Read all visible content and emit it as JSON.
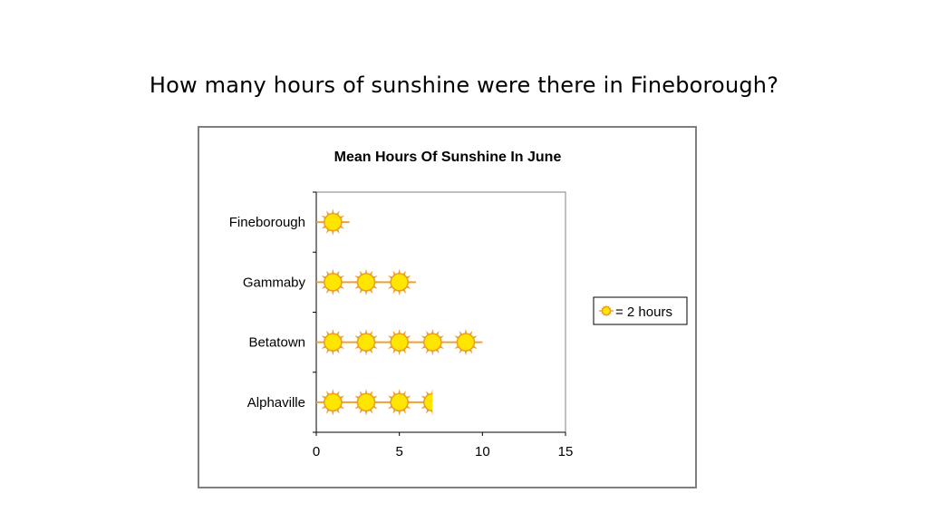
{
  "question": "How many hours of sunshine were there in Fineborough?",
  "chart_data": {
    "type": "bar",
    "title": "Mean Hours Of Sunshine In June",
    "categories": [
      "Fineborough",
      "Gammaby",
      "Betatown",
      "Alphaville"
    ],
    "values": [
      2,
      6,
      10,
      7
    ],
    "xlim": [
      0,
      15
    ],
    "xticks": [
      "0",
      "5",
      "10",
      "15"
    ],
    "hours_per_symbol": 2,
    "legend": {
      "text": "= 2 hours",
      "position": "right"
    },
    "grid": false,
    "colors": {
      "sun_fill": "#ffe600",
      "sun_ray": "#f0a030",
      "sun_edge": "#e8a020"
    }
  }
}
